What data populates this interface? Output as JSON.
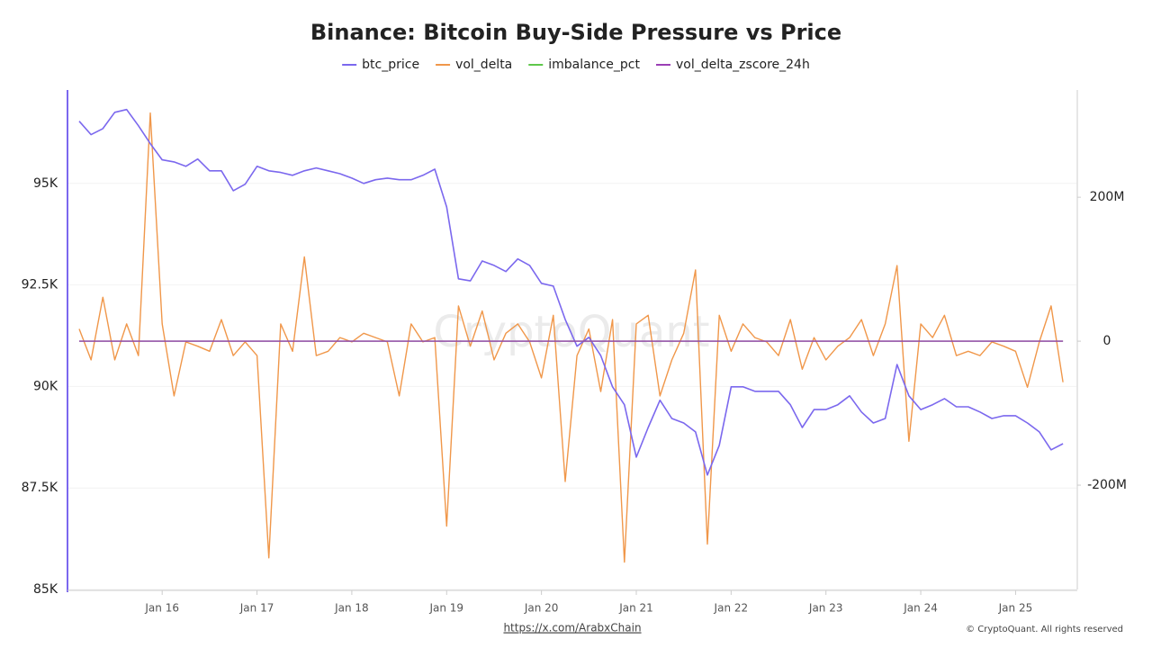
{
  "chart_data": {
    "type": "line",
    "title": "Binance: Bitcoin Buy-Side Pressure vs Price",
    "watermark": "CryptoQuant",
    "source": "https://x.com/ArabxChain",
    "copyright": "© CryptoQuant. All rights reserved",
    "categories": [
      null,
      null,
      null,
      null,
      null,
      null,
      null,
      "Jan 16",
      null,
      null,
      null,
      null,
      null,
      null,
      null,
      "Jan 17",
      null,
      null,
      null,
      null,
      null,
      null,
      null,
      "Jan 18",
      null,
      null,
      null,
      null,
      null,
      null,
      null,
      "Jan 19",
      null,
      null,
      null,
      null,
      null,
      null,
      null,
      "Jan 20",
      null,
      null,
      null,
      null,
      null,
      null,
      null,
      "Jan 21",
      null,
      null,
      null,
      null,
      null,
      null,
      null,
      "Jan 22",
      null,
      null,
      null,
      null,
      null,
      null,
      null,
      "Jan 23",
      null,
      null,
      null,
      null,
      null,
      null,
      null,
      "Jan 24",
      null,
      null,
      null,
      null,
      null,
      null,
      null,
      "Jan 25",
      null,
      null,
      null,
      null
    ],
    "series": [
      {
        "name": "btc_price",
        "color": "#7b68ee",
        "axis": "y",
        "values": [
          96530,
          96200,
          96350,
          96750,
          96820,
          96420,
          95980,
          95580,
          95530,
          95420,
          95600,
          95310,
          95310,
          94820,
          94980,
          95420,
          95310,
          95270,
          95200,
          95310,
          95380,
          95310,
          95240,
          95130,
          95000,
          95090,
          95130,
          95090,
          95090,
          95200,
          95350,
          94420,
          92650,
          92600,
          93090,
          92980,
          92830,
          93140,
          92980,
          92540,
          92470,
          91650,
          90990,
          91210,
          90760,
          89990,
          89550,
          88260,
          88990,
          89660,
          89210,
          89100,
          88880,
          87820,
          88550,
          89990,
          89990,
          89880,
          89880,
          89880,
          89550,
          88990,
          89430,
          89430,
          89550,
          89770,
          89370,
          89100,
          89210,
          90540,
          89770,
          89430,
          89550,
          89700,
          89500,
          89500,
          89370,
          89210,
          89280,
          89280,
          89100,
          88880,
          88440,
          88590
        ]
      },
      {
        "name": "vol_delta",
        "color": "#f0974a",
        "axis": "y2",
        "values": [
          17000000,
          -26000000,
          61000000,
          -26000000,
          24000000,
          -20000000,
          317000000,
          24000000,
          -76000000,
          -1000000,
          -7000000,
          -14000000,
          30000000,
          -20000000,
          -1000000,
          -20000000,
          -301000000,
          24000000,
          -14000000,
          117000000,
          -20000000,
          -14000000,
          5000000,
          -1000000,
          11000000,
          5000000,
          -1000000,
          -76000000,
          24000000,
          -1000000,
          5000000,
          -257000000,
          49000000,
          -7000000,
          42000000,
          -26000000,
          11000000,
          24000000,
          -1000000,
          -51000000,
          36000000,
          -195000000,
          -20000000,
          17000000,
          -70000000,
          30000000,
          -307000000,
          24000000,
          36000000,
          -76000000,
          -26000000,
          11000000,
          99000000,
          -282000000,
          36000000,
          -14000000,
          24000000,
          5000000,
          -1000000,
          -20000000,
          30000000,
          -39000000,
          5000000,
          -26000000,
          -7000000,
          5000000,
          30000000,
          -20000000,
          24000000,
          105000000,
          -139000000,
          24000000,
          5000000,
          36000000,
          -20000000,
          -14000000,
          -20000000,
          -1000000,
          -7000000,
          -14000000,
          -64000000,
          -1000000,
          49000000,
          -57000000
        ]
      },
      {
        "name": "imbalance_pct",
        "color": "#5ec74a",
        "axis": "y2",
        "values": [
          0,
          0,
          0,
          0,
          0,
          0,
          0,
          0,
          0,
          0,
          0,
          0,
          0,
          0,
          0,
          0,
          0,
          0,
          0,
          0,
          0,
          0,
          0,
          0,
          0,
          0,
          0,
          0,
          0,
          0,
          0,
          0,
          0,
          0,
          0,
          0,
          0,
          0,
          0,
          0,
          0,
          0,
          0,
          0,
          0,
          0,
          0,
          0,
          0,
          0,
          0,
          0,
          0,
          0,
          0,
          0,
          0,
          0,
          0,
          0,
          0,
          0,
          0,
          0,
          0,
          0,
          0,
          0,
          0,
          0,
          0,
          0,
          0,
          0,
          0,
          0,
          0,
          0,
          0,
          0,
          0,
          0,
          0,
          0
        ]
      },
      {
        "name": "vol_delta_zscore_24h",
        "color": "#9b3fb5",
        "axis": "y2",
        "values": [
          0,
          0,
          0,
          0,
          0,
          0,
          0,
          0,
          0,
          0,
          0,
          0,
          0,
          0,
          0,
          0,
          0,
          0,
          0,
          0,
          0,
          0,
          0,
          0,
          0,
          0,
          0,
          0,
          0,
          0,
          0,
          0,
          0,
          0,
          0,
          0,
          0,
          0,
          0,
          0,
          0,
          0,
          0,
          0,
          0,
          0,
          0,
          0,
          0,
          0,
          0,
          0,
          0,
          0,
          0,
          0,
          0,
          0,
          0,
          0,
          0,
          0,
          0,
          0,
          0,
          0,
          0,
          0,
          0,
          0,
          0,
          0,
          0,
          0,
          0,
          0,
          0,
          0,
          0,
          0,
          0,
          0,
          0,
          0
        ]
      }
    ],
    "ylim": [
      85000,
      97300
    ],
    "yticks": [
      {
        "value": 85000,
        "label": "85K"
      },
      {
        "value": 87500,
        "label": "87.5K"
      },
      {
        "value": 90000,
        "label": "90K"
      },
      {
        "value": 92500,
        "label": "92.5K"
      },
      {
        "value": 95000,
        "label": "95K"
      }
    ],
    "y2lim": [
      -345000000,
      349000000
    ],
    "y2ticks": [
      {
        "value": -200000000,
        "label": "-200M"
      },
      0,
      {
        "value": 200000000,
        "label": "200M"
      }
    ],
    "grid": true,
    "legend": "top"
  }
}
